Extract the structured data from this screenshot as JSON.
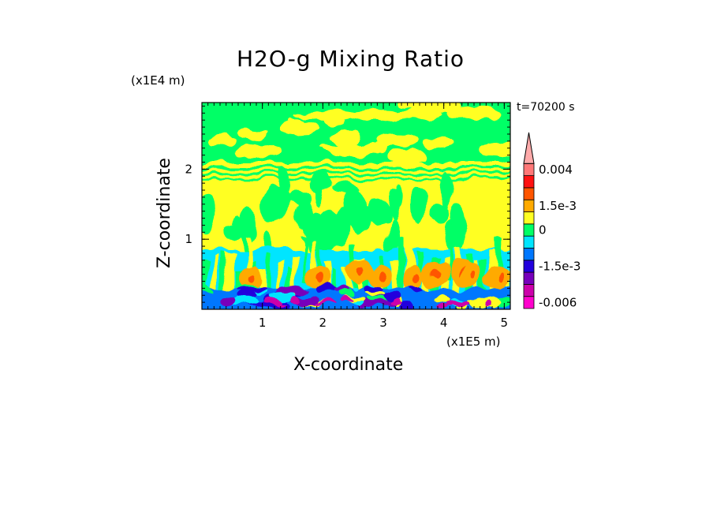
{
  "chart_data": {
    "type": "heatmap",
    "title": "H2O-g Mixing Ratio",
    "xlabel": "X-coordinate",
    "ylabel": "Z-coordinate",
    "x_unit_label": "(x1E5 m)",
    "y_unit_label": "(x1E4 m)",
    "time_label": "t=70200 s",
    "x_ticks": [
      {
        "value": 1,
        "label": "1"
      },
      {
        "value": 2,
        "label": "2"
      },
      {
        "value": 3,
        "label": "3"
      },
      {
        "value": 4,
        "label": "4"
      },
      {
        "value": 5,
        "label": "5"
      }
    ],
    "y_ticks": [
      {
        "value": 1,
        "label": "1"
      },
      {
        "value": 2,
        "label": "2"
      }
    ],
    "xlim": [
      0,
      5.1
    ],
    "ylim": [
      0,
      2.95
    ],
    "colorbar": {
      "levels": [
        {
          "color": "#ff00cc",
          "label": "-0.006"
        },
        {
          "color": "#cc00aa",
          "label": ""
        },
        {
          "color": "#7700bb",
          "label": ""
        },
        {
          "color": "#2200dd",
          "label": "-1.5e-3"
        },
        {
          "color": "#0077ff",
          "label": ""
        },
        {
          "color": "#00e5ff",
          "label": ""
        },
        {
          "color": "#00ff66",
          "label": "0"
        },
        {
          "color": "#ffff22",
          "label": ""
        },
        {
          "color": "#ffaa00",
          "label": "1.5e-3"
        },
        {
          "color": "#ff5500",
          "label": ""
        },
        {
          "color": "#ff1111",
          "label": ""
        },
        {
          "color": "#ff7777",
          "label": "0.004"
        },
        {
          "color": "#ffaaaa",
          "label": ""
        }
      ],
      "extend_max": true
    },
    "field_regions": {
      "upper_band": {
        "z_range": [
          2.05,
          2.95
        ],
        "dominant": "0",
        "secondary": "positive-yellow"
      },
      "layering": {
        "z_range": [
          1.9,
          2.05
        ],
        "dominant": "alternating bands"
      },
      "middle": {
        "z_range": [
          0.9,
          1.9
        ],
        "dominant": "positive-yellow",
        "secondary": "0"
      },
      "boundary_layer": {
        "z_range": [
          0.0,
          0.9
        ],
        "dominant": "mixed",
        "includes": [
          "-0.006",
          "-1.5e-3",
          "1.5e-3"
        ]
      }
    }
  }
}
